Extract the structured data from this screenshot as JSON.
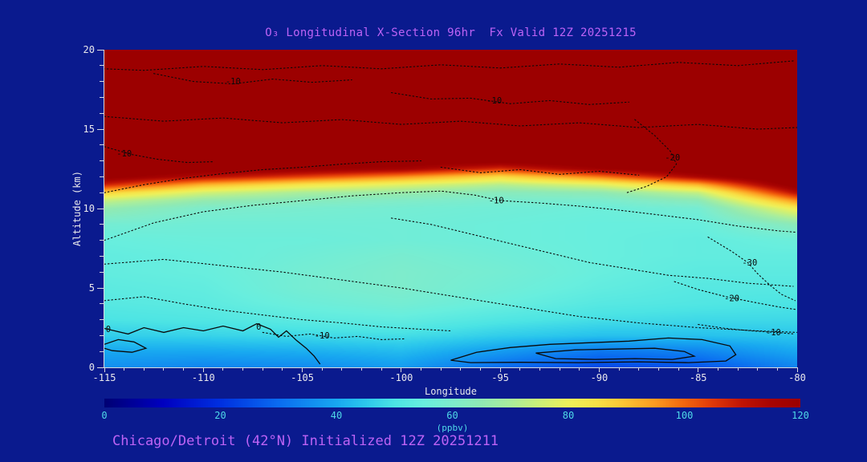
{
  "header": {
    "title": "O₃ Longitudinal X-Section 96hr  Fx Valid 12Z 20251215"
  },
  "footer": {
    "caption": "Chicago/Detroit (42°N) Initialized 12Z 20251211"
  },
  "colors": {
    "background": "#0a1a8e",
    "title_text": "#bd63f5",
    "caption_text": "#bd63f5",
    "axis_text": "#e8e8ec",
    "axis_line": "#d9d9dc",
    "colorbar_text": "#4fd9e8",
    "contour_line": "#0a0a0a"
  },
  "chart_data": {
    "type": "heatmap",
    "title": "O₃ Longitudinal X-Section 96hr  Fx Valid 12Z 20251215",
    "subtitle": "Chicago/Detroit (42°N) Initialized 12Z 20251211",
    "xlabel": "Longitude",
    "ylabel": "Altitude (km)",
    "xlim": [
      -115,
      -80
    ],
    "ylim": [
      0,
      20
    ],
    "x_ticks": [
      -115,
      -110,
      -105,
      -100,
      -95,
      -90,
      -85,
      -80
    ],
    "y_ticks": [
      0,
      5,
      10,
      15,
      20
    ],
    "x_minor_step": 1,
    "y_minor_step": 1,
    "grid_on": false,
    "colorbar": {
      "label": "(ppbv)",
      "min": 0,
      "max": 120,
      "ticks": [
        0,
        20,
        40,
        60,
        80,
        100,
        120
      ],
      "stops": [
        [
          0,
          "#000074"
        ],
        [
          10,
          "#0000c0"
        ],
        [
          20,
          "#0030e0"
        ],
        [
          30,
          "#0a6cf0"
        ],
        [
          40,
          "#18a8f0"
        ],
        [
          45,
          "#2cc8ec"
        ],
        [
          50,
          "#4ce4e4"
        ],
        [
          55,
          "#68eede"
        ],
        [
          60,
          "#7eeccc"
        ],
        [
          65,
          "#90eab4"
        ],
        [
          70,
          "#aaee9c"
        ],
        [
          75,
          "#ccf078"
        ],
        [
          80,
          "#eef05a"
        ],
        [
          85,
          "#f8e146"
        ],
        [
          90,
          "#fcc232"
        ],
        [
          95,
          "#fc9a20"
        ],
        [
          100,
          "#f4660e"
        ],
        [
          105,
          "#e03808"
        ],
        [
          110,
          "#c01404"
        ],
        [
          115,
          "#a80402"
        ],
        [
          120,
          "#9c0000"
        ]
      ]
    },
    "grid": {
      "lons": [
        -115,
        -110,
        -105,
        -100,
        -95,
        -90,
        -85,
        -80
      ],
      "alts": [
        0,
        1,
        2,
        3,
        4,
        5,
        6,
        7,
        8,
        9,
        10,
        10.5,
        11,
        11.5,
        12,
        12.5,
        13,
        14,
        16,
        18,
        20
      ],
      "units": "ppbv",
      "values": [
        [
          36,
          34,
          35,
          38,
          30,
          24,
          26,
          34
        ],
        [
          40,
          40,
          41,
          43,
          38,
          32,
          34,
          40
        ],
        [
          46,
          47,
          48,
          49,
          46,
          44,
          44,
          45
        ],
        [
          50,
          51,
          53,
          54,
          51,
          49,
          48,
          48
        ],
        [
          52,
          53,
          56,
          58,
          55,
          52,
          51,
          50
        ],
        [
          53,
          54,
          58,
          60,
          57,
          54,
          52,
          52
        ],
        [
          54,
          55,
          58,
          60,
          58,
          55,
          53,
          53
        ],
        [
          54,
          55,
          57,
          59,
          57,
          55,
          54,
          54
        ],
        [
          55,
          56,
          56,
          57,
          56,
          55,
          54,
          56
        ],
        [
          58,
          57,
          57,
          57,
          56,
          55,
          55,
          64
        ],
        [
          66,
          60,
          59,
          58,
          57,
          56,
          58,
          82
        ],
        [
          74,
          66,
          63,
          61,
          59,
          59,
          64,
          96
        ],
        [
          88,
          76,
          70,
          67,
          63,
          65,
          74,
          112
        ],
        [
          108,
          92,
          84,
          78,
          72,
          78,
          92,
          124
        ],
        [
          122,
          112,
          104,
          96,
          86,
          98,
          114,
          130
        ],
        [
          128,
          124,
          120,
          116,
          106,
          118,
          126,
          130
        ],
        [
          130,
          129,
          127,
          126,
          122,
          127,
          130,
          130
        ],
        [
          130,
          130,
          130,
          130,
          130,
          130,
          130,
          130
        ],
        [
          130,
          130,
          130,
          130,
          130,
          130,
          130,
          130
        ],
        [
          130,
          130,
          130,
          130,
          130,
          130,
          130,
          130
        ],
        [
          130,
          130,
          130,
          130,
          130,
          130,
          130,
          130
        ]
      ]
    },
    "overlay_contours": [
      {
        "style": "solid",
        "points": [
          [
            -115,
            2.45
          ],
          [
            -113.8,
            2.1
          ],
          [
            -113,
            2.5
          ],
          [
            -112,
            2.2
          ],
          [
            -111,
            2.5
          ],
          [
            -110,
            2.3
          ],
          [
            -109,
            2.6
          ],
          [
            -108,
            2.3
          ],
          [
            -107.3,
            2.75
          ],
          [
            -106.6,
            2.4
          ],
          [
            -106.2,
            1.9
          ],
          [
            -105.8,
            2.3
          ],
          [
            -105.3,
            1.7
          ],
          [
            -104.8,
            1.2
          ],
          [
            -104.4,
            0.7
          ],
          [
            -104.1,
            0.2
          ]
        ]
      },
      {
        "style": "solid",
        "points": [
          [
            -115,
            1.45
          ],
          [
            -114.3,
            1.75
          ],
          [
            -113.5,
            1.6
          ],
          [
            -112.9,
            1.2
          ],
          [
            -113.6,
            0.95
          ],
          [
            -114.6,
            1.05
          ],
          [
            -115,
            1.2
          ]
        ]
      },
      {
        "style": "solid",
        "closed": true,
        "points": [
          [
            -97.5,
            0.45
          ],
          [
            -96.2,
            0.95
          ],
          [
            -94.5,
            1.25
          ],
          [
            -92.5,
            1.45
          ],
          [
            -90.5,
            1.55
          ],
          [
            -88.5,
            1.65
          ],
          [
            -86.5,
            1.85
          ],
          [
            -84.8,
            1.75
          ],
          [
            -83.4,
            1.35
          ],
          [
            -83.1,
            0.8
          ],
          [
            -83.6,
            0.4
          ],
          [
            -85.5,
            0.3
          ],
          [
            -88,
            0.35
          ],
          [
            -91,
            0.3
          ],
          [
            -94,
            0.32
          ],
          [
            -96.5,
            0.3
          ]
        ]
      },
      {
        "style": "solid",
        "closed": true,
        "points": [
          [
            -93.2,
            0.9
          ],
          [
            -91.2,
            1.1
          ],
          [
            -89.2,
            1.15
          ],
          [
            -87.2,
            1.2
          ],
          [
            -85.7,
            1.0
          ],
          [
            -85.2,
            0.7
          ],
          [
            -86.3,
            0.5
          ],
          [
            -88.2,
            0.55
          ],
          [
            -90.2,
            0.5
          ],
          [
            -92.2,
            0.55
          ]
        ]
      },
      {
        "style": "dotted",
        "points": [
          [
            -115,
            8.0
          ],
          [
            -112.5,
            9.1
          ],
          [
            -110,
            9.8
          ],
          [
            -107.5,
            10.2
          ],
          [
            -105,
            10.5
          ],
          [
            -102.5,
            10.8
          ],
          [
            -100,
            11.0
          ],
          [
            -98,
            11.1
          ],
          [
            -96.3,
            10.85
          ],
          [
            -95,
            10.5
          ],
          [
            -93,
            10.35
          ],
          [
            -91,
            10.15
          ],
          [
            -89,
            9.9
          ],
          [
            -87,
            9.6
          ],
          [
            -85,
            9.3
          ],
          [
            -83,
            8.9
          ],
          [
            -81,
            8.6
          ],
          [
            -80,
            8.5
          ]
        ]
      },
      {
        "style": "dotted",
        "points": [
          [
            -115,
            6.5
          ],
          [
            -112,
            6.8
          ],
          [
            -109,
            6.4
          ],
          [
            -106,
            6.0
          ],
          [
            -103,
            5.5
          ],
          [
            -100,
            5.0
          ],
          [
            -97,
            4.4
          ],
          [
            -94,
            3.8
          ],
          [
            -91,
            3.2
          ],
          [
            -88,
            2.8
          ],
          [
            -85,
            2.5
          ],
          [
            -82,
            2.3
          ],
          [
            -80,
            2.2
          ]
        ]
      },
      {
        "style": "dotted",
        "points": [
          [
            -115,
            4.2
          ],
          [
            -113,
            4.45
          ],
          [
            -111,
            4.0
          ],
          [
            -109,
            3.6
          ],
          [
            -107,
            3.3
          ],
          [
            -105,
            3.0
          ],
          [
            -103,
            2.8
          ],
          [
            -101,
            2.55
          ],
          [
            -99,
            2.4
          ],
          [
            -97.5,
            2.3
          ]
        ]
      },
      {
        "style": "dotted",
        "points": [
          [
            -100.5,
            9.4
          ],
          [
            -98.5,
            9.0
          ],
          [
            -96.5,
            8.4
          ],
          [
            -94.5,
            7.8
          ],
          [
            -92.5,
            7.2
          ],
          [
            -90.5,
            6.6
          ],
          [
            -88.5,
            6.2
          ],
          [
            -86.5,
            5.8
          ],
          [
            -84.5,
            5.6
          ],
          [
            -82.5,
            5.3
          ],
          [
            -80.2,
            5.1
          ]
        ]
      },
      {
        "style": "dotted",
        "points": [
          [
            -88.2,
            15.6
          ],
          [
            -87.2,
            14.6
          ],
          [
            -86.4,
            13.6
          ],
          [
            -86.1,
            12.8
          ],
          [
            -86.6,
            12.0
          ],
          [
            -87.6,
            11.4
          ],
          [
            -88.6,
            11.0
          ]
        ]
      },
      {
        "style": "dotted",
        "points": [
          [
            -84.5,
            8.2
          ],
          [
            -83.3,
            7.3
          ],
          [
            -82.5,
            6.6
          ],
          [
            -82.0,
            5.9
          ],
          [
            -81.4,
            5.2
          ],
          [
            -80.8,
            4.6
          ],
          [
            -80.1,
            4.2
          ]
        ]
      },
      {
        "style": "dotted",
        "points": [
          [
            -86.2,
            5.4
          ],
          [
            -85.0,
            4.9
          ],
          [
            -83.6,
            4.45
          ],
          [
            -82.2,
            4.1
          ],
          [
            -80.9,
            3.8
          ],
          [
            -80.1,
            3.65
          ]
        ]
      },
      {
        "style": "dotted",
        "points": [
          [
            -85,
            2.7
          ],
          [
            -83.6,
            2.45
          ],
          [
            -82.3,
            2.3
          ],
          [
            -81.1,
            2.2
          ],
          [
            -80.1,
            2.1
          ]
        ]
      },
      {
        "style": "dotted",
        "points": [
          [
            -107,
            2.2
          ],
          [
            -105.8,
            1.95
          ],
          [
            -104.6,
            2.1
          ],
          [
            -103.4,
            1.85
          ],
          [
            -102.2,
            1.95
          ],
          [
            -101,
            1.75
          ],
          [
            -99.8,
            1.8
          ]
        ]
      },
      {
        "style": "dotted",
        "points": [
          [
            -115,
            13.9
          ],
          [
            -113.6,
            13.4
          ],
          [
            -112.3,
            13.1
          ],
          [
            -110.8,
            12.9
          ],
          [
            -109.5,
            12.95
          ]
        ]
      },
      {
        "style": "dotted",
        "points": [
          [
            -112.5,
            18.5
          ],
          [
            -110.5,
            18.0
          ],
          [
            -108.5,
            17.85
          ],
          [
            -106.5,
            18.15
          ],
          [
            -104.5,
            17.95
          ],
          [
            -102.5,
            18.1
          ]
        ]
      },
      {
        "style": "dotted",
        "points": [
          [
            -100.5,
            17.3
          ],
          [
            -98.5,
            16.9
          ],
          [
            -96.5,
            16.95
          ],
          [
            -94.5,
            16.6
          ],
          [
            -92.5,
            16.8
          ],
          [
            -90.5,
            16.55
          ],
          [
            -88.5,
            16.7
          ]
        ]
      },
      {
        "style": "dotted",
        "points": [
          [
            -115,
            15.8
          ],
          [
            -112,
            15.5
          ],
          [
            -109,
            15.7
          ],
          [
            -106,
            15.4
          ],
          [
            -103,
            15.6
          ],
          [
            -100,
            15.3
          ],
          [
            -97,
            15.5
          ],
          [
            -94,
            15.2
          ],
          [
            -91,
            15.4
          ],
          [
            -88,
            15.1
          ],
          [
            -85,
            15.3
          ],
          [
            -82,
            15.0
          ],
          [
            -80,
            15.1
          ]
        ]
      },
      {
        "style": "dotted",
        "points": [
          [
            -98,
            12.6
          ],
          [
            -96,
            12.25
          ],
          [
            -94,
            12.45
          ],
          [
            -92,
            12.15
          ],
          [
            -90,
            12.35
          ],
          [
            -88,
            12.1
          ]
        ]
      },
      {
        "style": "dotted",
        "points": [
          [
            -80.2,
            19.3
          ],
          [
            -83,
            19.0
          ],
          [
            -86,
            19.2
          ],
          [
            -89,
            18.9
          ],
          [
            -92,
            19.1
          ],
          [
            -95,
            18.85
          ],
          [
            -98,
            19.05
          ],
          [
            -101,
            18.8
          ],
          [
            -104,
            19.0
          ],
          [
            -107,
            18.75
          ],
          [
            -110,
            18.95
          ],
          [
            -113,
            18.7
          ],
          [
            -115,
            18.8
          ]
        ]
      },
      {
        "style": "dotted",
        "points": [
          [
            -115,
            11.0
          ],
          [
            -113,
            11.5
          ],
          [
            -111,
            11.9
          ],
          [
            -109,
            12.2
          ],
          [
            -107,
            12.45
          ],
          [
            -105,
            12.6
          ],
          [
            -103,
            12.8
          ],
          [
            -101,
            12.95
          ],
          [
            -99,
            13.0
          ]
        ]
      }
    ],
    "contour_labels": [
      {
        "text": "-10",
        "lon": -108.5,
        "alt": 18.0
      },
      {
        "text": "-10",
        "lon": -95.3,
        "alt": 16.8
      },
      {
        "text": "-20",
        "lon": -86.3,
        "alt": 13.2
      },
      {
        "text": "-10",
        "lon": -114.0,
        "alt": 13.45
      },
      {
        "text": "-10",
        "lon": -95.2,
        "alt": 10.5
      },
      {
        "text": "-30",
        "lon": -82.4,
        "alt": 6.6
      },
      {
        "text": "-20",
        "lon": -83.3,
        "alt": 4.35
      },
      {
        "text": "-10",
        "lon": -81.2,
        "alt": 2.2
      },
      {
        "text": "-10",
        "lon": -104.0,
        "alt": 2.0
      },
      {
        "text": "0",
        "lon": -107.2,
        "alt": 2.55
      },
      {
        "text": "0",
        "lon": -114.8,
        "alt": 2.4
      }
    ]
  }
}
